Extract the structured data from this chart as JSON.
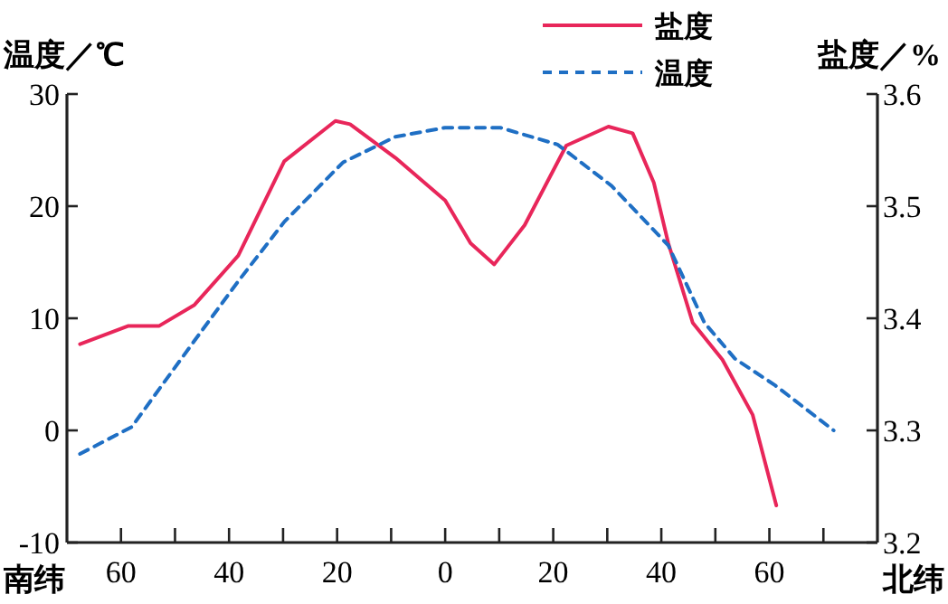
{
  "chart_data": {
    "type": "line",
    "ylabel": "温度／℃",
    "y2label": "盐度／%",
    "annotations": [
      "南纬",
      "北纬"
    ],
    "xlim": [
      -70,
      80
    ],
    "xticks": [
      {
        "value": -60,
        "label": "60"
      },
      {
        "value": -50,
        "label": null
      },
      {
        "value": -40,
        "label": "40"
      },
      {
        "value": -30,
        "label": null
      },
      {
        "value": -20,
        "label": "20"
      },
      {
        "value": -10,
        "label": null
      },
      0,
      {
        "value": 10,
        "label": null
      },
      {
        "value": 20,
        "label": "20"
      },
      {
        "value": 30,
        "label": null
      },
      {
        "value": 40,
        "label": "40"
      },
      {
        "value": 50,
        "label": null
      },
      {
        "value": 60,
        "label": "60"
      },
      {
        "value": 70,
        "label": null
      }
    ],
    "ylim": [
      -10,
      30
    ],
    "yticks": [
      -10,
      0,
      10,
      20,
      30
    ],
    "y2lim": [
      3.2,
      3.6
    ],
    "y2ticks": [
      3.2,
      3.3,
      3.4,
      3.5,
      3.6
    ],
    "legend": "top right",
    "grid": false,
    "series": [
      {
        "name": "盐度",
        "color": "#e8265a",
        "axis": "y2",
        "line_style": "solid",
        "x": [
          -67.6,
          -58.7,
          -53,
          -46.4,
          -38.3,
          -29.8,
          -20.3,
          -17.6,
          -9.2,
          0,
          4.7,
          9.1,
          14.7,
          22.4,
          30.2,
          34.7,
          38.6,
          41.3,
          45.8,
          51.3,
          56.9,
          61.3
        ],
        "values": [
          3.377,
          3.393,
          3.393,
          3.412,
          3.456,
          3.54,
          3.576,
          3.573,
          3.543,
          3.505,
          3.467,
          3.448,
          3.483,
          3.554,
          3.571,
          3.565,
          3.521,
          3.467,
          3.396,
          3.363,
          3.314,
          3.233
        ]
      },
      {
        "name": "温度",
        "color": "#1f6fc4",
        "line_style": "dashed",
        "x": [
          -67.6,
          -58,
          -52,
          -46.4,
          -38.3,
          -29.8,
          -18.9,
          -9.2,
          0,
          10.2,
          20.8,
          30.8,
          41.3,
          48,
          53.6,
          61.1,
          71.9
        ],
        "values": [
          -2.1,
          0.3,
          4.3,
          8,
          13.3,
          18.6,
          23.9,
          26.2,
          27,
          27,
          25.5,
          21.8,
          16.5,
          9.6,
          6.4,
          4,
          0
        ]
      }
    ]
  }
}
